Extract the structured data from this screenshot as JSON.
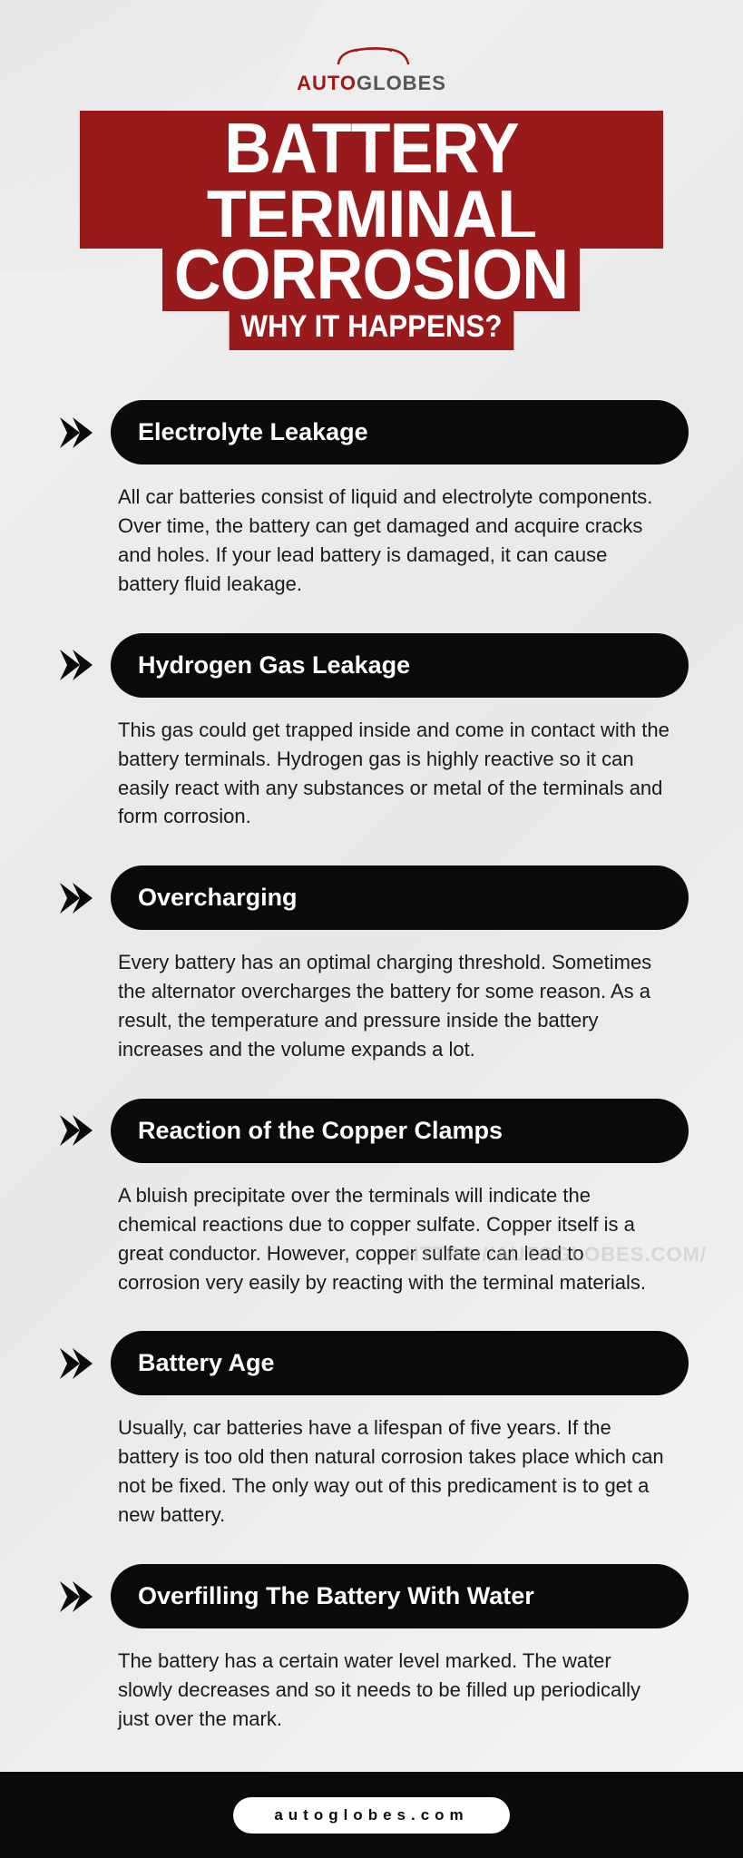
{
  "logo": {
    "part1": "AUTO",
    "part2": "GLOBES",
    "car_color": "#a01818"
  },
  "title": {
    "line1": "BATTERY TERMINAL",
    "line2": "CORROSION",
    "subtitle": "WHY IT HAPPENS?",
    "bg_color": "#981a1a",
    "text_color": "#ffffff"
  },
  "sections": [
    {
      "heading": "Electrolyte Leakage",
      "body": "All car batteries consist of liquid and electrolyte components. Over time, the battery can get damaged and acquire cracks and holes. If your lead battery is damaged, it can cause battery fluid leakage."
    },
    {
      "heading": "Hydrogen Gas Leakage",
      "body": "This gas could get trapped inside and come in contact with the battery terminals. Hydrogen gas is highly reactive so it can easily react with any substances or metal of the terminals and form corrosion."
    },
    {
      "heading": "Overcharging",
      "body": "Every battery has an optimal charging threshold. Sometimes the alternator overcharges the battery for some reason. As a result, the temperature and pressure inside the battery increases and the volume expands a lot."
    },
    {
      "heading": "Reaction of the Copper Clamps",
      "body": "A bluish precipitate over the terminals will indicate the chemical reactions due to copper sulfate. Copper itself is a great conductor. However, copper sulfate can lead to corrosion very easily by reacting with the terminal materials."
    },
    {
      "heading": "Battery Age",
      "body": "Usually, car batteries have a lifespan of five years. If the battery is too old then natural corrosion takes place which can not be fixed. The only way out of this predicament is to get a new battery."
    },
    {
      "heading": "Overfilling The Battery With Water",
      "body": "The battery has a certain water level marked. The water slowly decreases and so it needs to be filled up periodically just over the mark."
    }
  ],
  "watermark": "HTTPS://AUTOGLOBES.COM/",
  "footer": "autoglobes.com",
  "colors": {
    "pill_bg": "#0a0a0a",
    "pill_text": "#ffffff",
    "body_text": "#1a1a1a",
    "page_bg": "#f0f0f0",
    "chevron": "#0a0a0a"
  }
}
